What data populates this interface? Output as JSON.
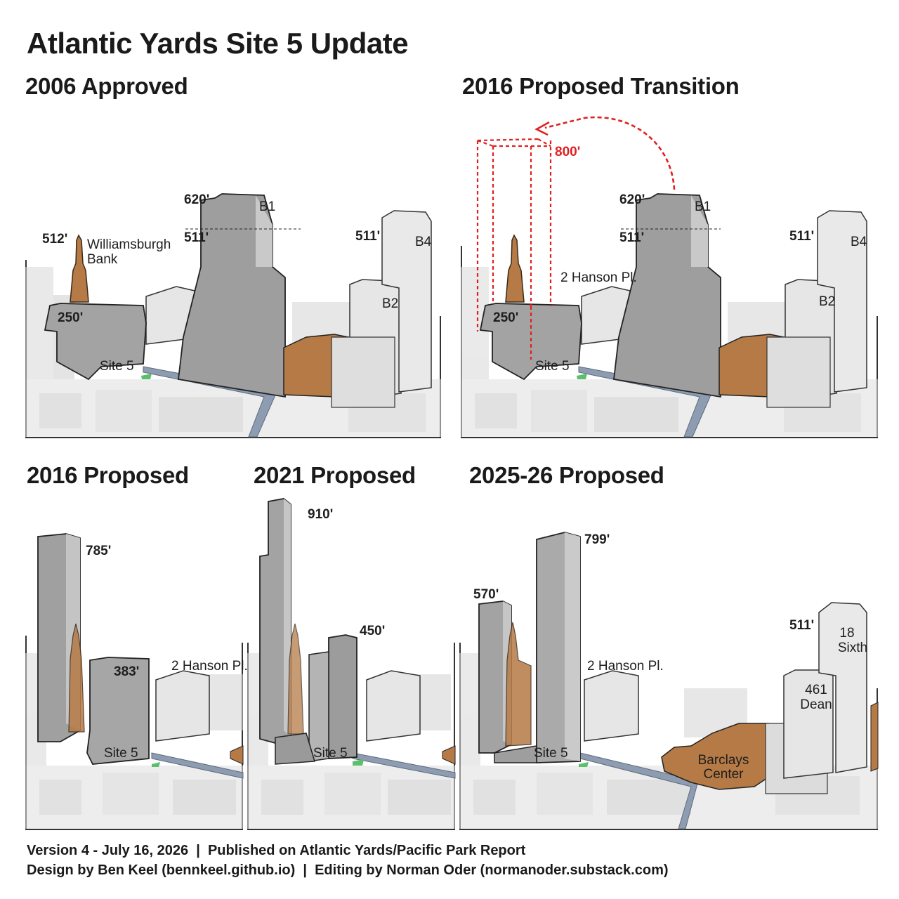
{
  "title": "Atlantic Yards Site 5 Update",
  "panels": {
    "p2006": {
      "title": "2006 Approved",
      "labels": {
        "h_wb": "512'",
        "wb_name_1": "Williamsburgh",
        "wb_name_2": "Bank",
        "h_b1": "620'",
        "b1": "B1",
        "h_511_b1": "511'",
        "h_511_b4": "511'",
        "b4": "B4",
        "b2": "B2",
        "h_250": "250'",
        "site5": "Site 5"
      }
    },
    "p2016t": {
      "title": "2016 Proposed Transition",
      "labels": {
        "h_800": "800'",
        "h_b1": "620'",
        "b1": "B1",
        "h_511_b1": "511'",
        "h_511_b4": "511'",
        "b4": "B4",
        "b2": "B2",
        "hanson": "2 Hanson Pl.",
        "h_250": "250'",
        "site5": "Site 5"
      }
    },
    "p2016": {
      "title": "2016 Proposed",
      "labels": {
        "h_785": "785'",
        "h_383": "383'",
        "hanson": "2 Hanson Pl.",
        "site5": "Site 5"
      }
    },
    "p2021": {
      "title": "2021 Proposed",
      "labels": {
        "h_910": "910'",
        "h_450": "450'",
        "site5": "Site 5"
      }
    },
    "p2025": {
      "title": "2025-26 Proposed",
      "labels": {
        "h_570": "570'",
        "h_799": "799'",
        "h_511": "511'",
        "sixth_1": "18",
        "sixth_2": "Sixth",
        "dean_1": "461",
        "dean_2": "Dean",
        "hanson": "2 Hanson Pl.",
        "site5": "Site 5",
        "barclays_1": "Barclays",
        "barclays_2": "Center"
      }
    }
  },
  "footer": {
    "line1": "Version 4 - July 16, 2026  |  Published on Atlantic Yards/Pacific Park Report",
    "line2": "Design by Ben Keel (bennkeel.github.io)  |  Editing by Norman Oder (normanoder.substack.com)"
  },
  "colors": {
    "bank": "#b57a45",
    "tower": "#9e9e9e",
    "light_building": "#e6e6e6",
    "road": "#8e9cb2",
    "callout": "#e02020"
  }
}
